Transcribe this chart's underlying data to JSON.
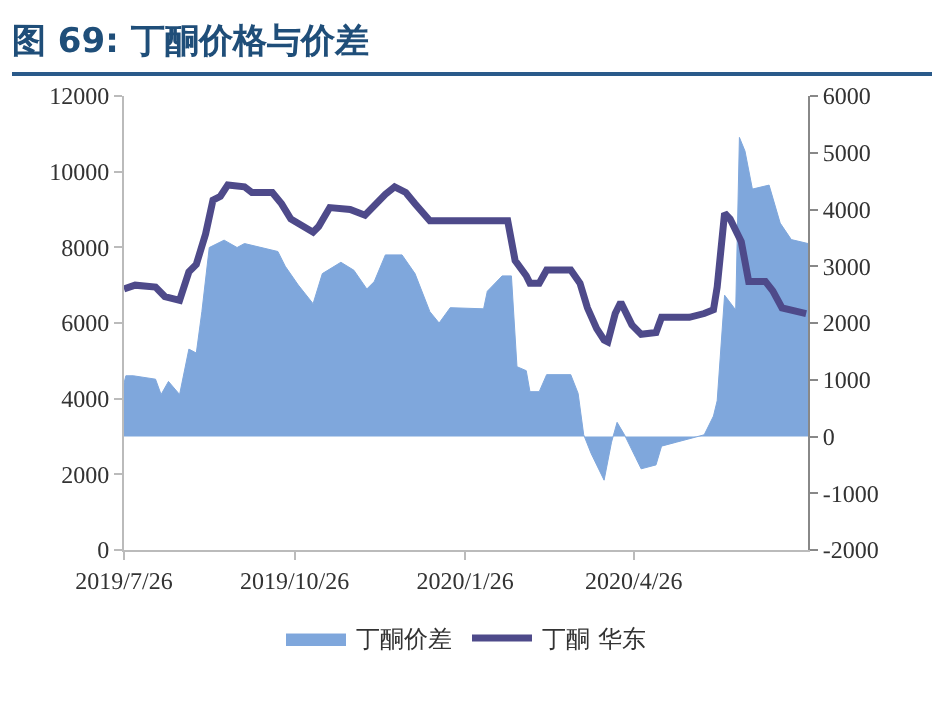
{
  "chart_data": {
    "type": "line",
    "title": "图 69: 丁酮价格与价差",
    "xlim": [
      "2019-07-26",
      "2020-07-29"
    ],
    "xticks": [
      {
        "value": "2019-07-26",
        "label": "2019/7/26"
      },
      {
        "value": "2019-10-26",
        "label": "2019/10/26"
      },
      {
        "value": "2020-01-26",
        "label": "2020/1/26"
      },
      {
        "value": "2020-04-26",
        "label": "2020/4/26"
      }
    ],
    "ylim": [
      0,
      12000
    ],
    "yticks": [
      0,
      2000,
      4000,
      6000,
      8000,
      10000,
      12000
    ],
    "y2lim": [
      -2000,
      6000
    ],
    "y2ticks": [
      -2000,
      -1000,
      0,
      1000,
      2000,
      3000,
      4000,
      5000,
      6000
    ],
    "grid": false,
    "legend": "bottom",
    "marker": "none",
    "series": [
      {
        "name": "丁酮价差",
        "type": "area",
        "axis": "y2",
        "color": "#7fa7dc",
        "x": [
          "2019-07-26",
          "2019-07-27",
          "2019-07-31",
          "2019-08-12",
          "2019-08-15",
          "2019-08-19",
          "2019-08-25",
          "2019-08-30",
          "2019-09-03",
          "2019-09-06",
          "2019-09-10",
          "2019-09-18",
          "2019-09-25",
          "2019-09-29",
          "2019-10-17",
          "2019-10-21",
          "2019-10-28",
          "2019-11-05",
          "2019-11-10",
          "2019-11-20",
          "2019-11-27",
          "2019-12-04",
          "2019-12-08",
          "2019-12-14",
          "2019-12-23",
          "2019-12-30",
          "2020-01-07",
          "2020-01-12",
          "2020-01-18",
          "2020-02-05",
          "2020-02-07",
          "2020-02-15",
          "2020-02-20",
          "2020-02-23",
          "2020-02-28",
          "2020-03-01",
          "2020-03-06",
          "2020-03-10",
          "2020-03-23",
          "2020-03-27",
          "2020-03-30",
          "2020-04-03",
          "2020-04-10",
          "2020-04-14",
          "2020-04-17",
          "2020-04-21",
          "2020-04-27",
          "2020-04-30",
          "2020-05-08",
          "2020-05-11",
          "2020-05-19",
          "2020-06-03",
          "2020-06-08",
          "2020-06-10",
          "2020-06-14",
          "2020-06-20",
          "2020-06-22",
          "2020-06-25",
          "2020-06-29",
          "2020-07-08",
          "2020-07-14",
          "2020-07-20",
          "2020-07-29"
        ],
        "values": [
          940,
          1070,
          1070,
          1010,
          740,
          970,
          740,
          1540,
          1470,
          2200,
          3330,
          3460,
          3330,
          3400,
          3260,
          3000,
          2670,
          2340,
          2870,
          3070,
          2930,
          2600,
          2730,
          3200,
          3200,
          2870,
          2200,
          2000,
          2270,
          2250,
          2560,
          2830,
          2830,
          1230,
          1160,
          790,
          790,
          1090,
          1090,
          760,
          30,
          -300,
          -770,
          -100,
          250,
          30,
          -370,
          -570,
          -500,
          -170,
          -100,
          30,
          360,
          630,
          2490,
          2230,
          5270,
          5030,
          4360,
          4430,
          3760,
          3470,
          3400
        ]
      },
      {
        "name": "丁酮 华东",
        "type": "line",
        "axis": "y",
        "color": "#4e4a8a",
        "line_style": "solid",
        "x": [
          "2019-07-26",
          "2019-08-01",
          "2019-08-12",
          "2019-08-17",
          "2019-08-25",
          "2019-08-30",
          "2019-09-03",
          "2019-09-08",
          "2019-09-12",
          "2019-09-16",
          "2019-09-20",
          "2019-09-29",
          "2019-10-03",
          "2019-10-14",
          "2019-10-19",
          "2019-10-24",
          "2019-11-05",
          "2019-11-08",
          "2019-11-14",
          "2019-11-25",
          "2019-12-03",
          "2019-12-14",
          "2019-12-19",
          "2019-12-25",
          "2019-12-30",
          "2020-01-07",
          "2020-02-18",
          "2020-02-22",
          "2020-02-28",
          "2020-03-01",
          "2020-03-06",
          "2020-03-10",
          "2020-03-23",
          "2020-03-28",
          "2020-04-01",
          "2020-04-06",
          "2020-04-10",
          "2020-04-12",
          "2020-04-16",
          "2020-04-19",
          "2020-04-25",
          "2020-04-30",
          "2020-05-08",
          "2020-05-11",
          "2020-05-26",
          "2020-06-03",
          "2020-06-08",
          "2020-06-10",
          "2020-06-14",
          "2020-06-17",
          "2020-06-23",
          "2020-06-27",
          "2020-07-06",
          "2020-07-10",
          "2020-07-15",
          "2020-07-28"
        ],
        "values": [
          6900,
          7000,
          6950,
          6700,
          6600,
          7350,
          7550,
          8350,
          9250,
          9350,
          9650,
          9600,
          9450,
          9450,
          9150,
          8750,
          8400,
          8550,
          9050,
          9000,
          8850,
          9400,
          9600,
          9450,
          9150,
          8700,
          8700,
          7650,
          7250,
          7050,
          7050,
          7400,
          7400,
          7050,
          6400,
          5850,
          5550,
          5500,
          6250,
          6550,
          5950,
          5700,
          5750,
          6150,
          6150,
          6250,
          6350,
          6950,
          8900,
          8750,
          8150,
          7100,
          7100,
          6850,
          6400,
          6250
        ]
      }
    ]
  }
}
